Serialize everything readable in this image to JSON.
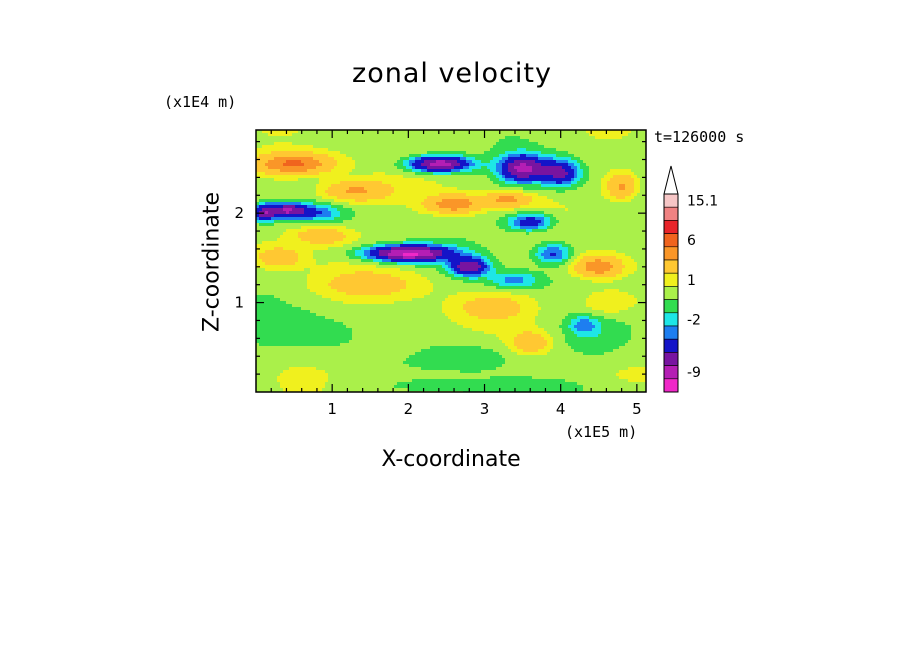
{
  "chart_data": {
    "type": "heatmap",
    "title": "zonal velocity",
    "xlabel": "X-coordinate",
    "ylabel": "Z-coordinate",
    "x_unit_label": "(x1E5 m)",
    "y_unit_label": "(x1E4 m)",
    "time_label": "t=126000 s",
    "xlim": [
      0,
      5.12
    ],
    "ylim": [
      0,
      2.93
    ],
    "x_ticks": [
      1,
      2,
      3,
      4,
      5
    ],
    "y_ticks": [
      1,
      2
    ],
    "x_tick_labels": [
      "1",
      "2",
      "3",
      "4",
      "5"
    ],
    "y_tick_labels": [
      "1",
      "2"
    ],
    "colorbar": {
      "labels": [
        {
          "text": "15.1",
          "value": 15.1
        },
        {
          "text": "6",
          "value": 6
        },
        {
          "text": "1",
          "value": 1
        },
        {
          "text": "-2",
          "value": -2
        },
        {
          "text": "-9",
          "value": -9
        }
      ],
      "levels": [
        {
          "value": 15.1,
          "color": "#f6c6c6"
        },
        {
          "value": 12,
          "color": "#f08282"
        },
        {
          "value": 9,
          "color": "#e8242a"
        },
        {
          "value": 6,
          "color": "#f0641e"
        },
        {
          "value": 4,
          "color": "#fa9628"
        },
        {
          "value": 2,
          "color": "#ffc832"
        },
        {
          "value": 1,
          "color": "#f0f01e"
        },
        {
          "value": 0,
          "color": "#aaf04a"
        },
        {
          "value": -1,
          "color": "#32dc50"
        },
        {
          "value": -2,
          "color": "#1ee6e6"
        },
        {
          "value": -3,
          "color": "#1e7ef0"
        },
        {
          "value": -5,
          "color": "#1414c8"
        },
        {
          "value": -7,
          "color": "#7814a0"
        },
        {
          "value": -9,
          "color": "#b41eb4"
        },
        {
          "value": -12,
          "color": "#f028c8"
        }
      ]
    },
    "features": [
      {
        "x": 0.5,
        "z": 2.55,
        "sx": 0.5,
        "sz": 0.12,
        "u": 6
      },
      {
        "x": 0.85,
        "z": 1.75,
        "sx": 0.35,
        "sz": 0.1,
        "u": 3
      },
      {
        "x": 0.3,
        "z": 1.5,
        "sx": 0.3,
        "sz": 0.12,
        "u": 3
      },
      {
        "x": 0.1,
        "z": 2.0,
        "sx": 0.15,
        "sz": 0.1,
        "u": -6
      },
      {
        "x": 0.4,
        "z": 2.03,
        "sx": 0.25,
        "sz": 0.08,
        "u": -7
      },
      {
        "x": 0.8,
        "z": 2.0,
        "sx": 0.35,
        "sz": 0.1,
        "u": -3
      },
      {
        "x": 1.3,
        "z": 2.25,
        "sx": 0.45,
        "sz": 0.12,
        "u": 4
      },
      {
        "x": 2.4,
        "z": 2.55,
        "sx": 0.4,
        "sz": 0.09,
        "u": -9
      },
      {
        "x": 3.5,
        "z": 2.5,
        "sx": 0.3,
        "sz": 0.15,
        "u": -8
      },
      {
        "x": 4.0,
        "z": 2.45,
        "sx": 0.25,
        "sz": 0.15,
        "u": -6
      },
      {
        "x": 2.6,
        "z": 2.1,
        "sx": 0.35,
        "sz": 0.1,
        "u": 5
      },
      {
        "x": 3.3,
        "z": 2.15,
        "sx": 0.3,
        "sz": 0.08,
        "u": 4
      },
      {
        "x": 4.8,
        "z": 2.3,
        "sx": 0.2,
        "sz": 0.15,
        "u": 4
      },
      {
        "x": 2.0,
        "z": 1.55,
        "sx": 0.55,
        "sz": 0.09,
        "u": -10
      },
      {
        "x": 2.8,
        "z": 1.4,
        "sx": 0.25,
        "sz": 0.1,
        "u": -7
      },
      {
        "x": 3.6,
        "z": 1.9,
        "sx": 0.3,
        "sz": 0.1,
        "u": -5
      },
      {
        "x": 3.9,
        "z": 1.55,
        "sx": 0.25,
        "sz": 0.12,
        "u": -4
      },
      {
        "x": 4.5,
        "z": 1.4,
        "sx": 0.3,
        "sz": 0.12,
        "u": 5
      },
      {
        "x": 3.4,
        "z": 1.25,
        "sx": 0.35,
        "sz": 0.1,
        "u": -3
      },
      {
        "x": 1.5,
        "z": 1.2,
        "sx": 0.7,
        "sz": 0.15,
        "u": 2
      },
      {
        "x": 3.1,
        "z": 0.95,
        "sx": 0.5,
        "sz": 0.15,
        "u": 2
      },
      {
        "x": 4.6,
        "z": 1.0,
        "sx": 0.35,
        "sz": 0.15,
        "u": 2
      },
      {
        "x": 0.6,
        "z": 0.65,
        "sx": 0.8,
        "sz": 0.25,
        "u": -1.2
      },
      {
        "x": 1.8,
        "z": 0.6,
        "sx": 0.45,
        "sz": 0.2,
        "u": 0.5
      },
      {
        "x": 3.6,
        "z": 0.55,
        "sx": 0.25,
        "sz": 0.12,
        "u": 3
      },
      {
        "x": 2.9,
        "z": 0.4,
        "sx": 0.6,
        "sz": 0.2,
        "u": -1.3
      },
      {
        "x": 4.5,
        "z": 0.6,
        "sx": 0.5,
        "sz": 0.25,
        "u": -1.2
      },
      {
        "x": 4.3,
        "z": 0.75,
        "sx": 0.18,
        "sz": 0.1,
        "u": -2.5
      },
      {
        "x": 3.3,
        "z": 0.05,
        "sx": 1.5,
        "sz": 0.1,
        "u": -1
      }
    ]
  }
}
